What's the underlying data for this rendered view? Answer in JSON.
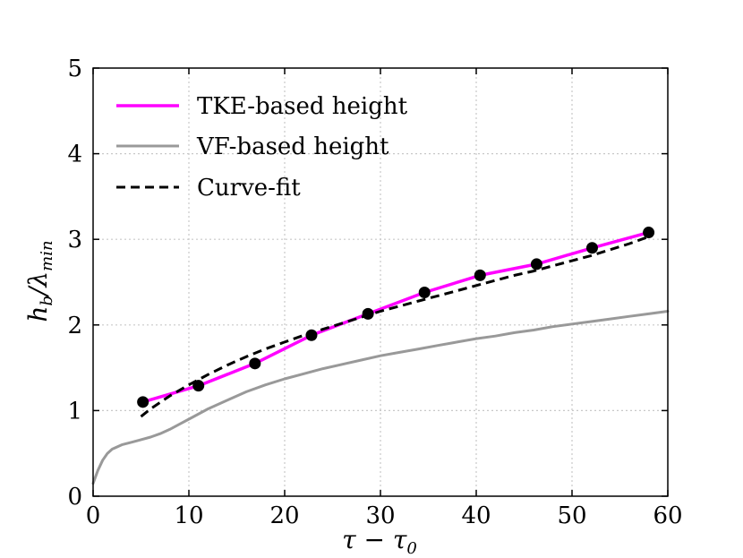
{
  "chart_data": {
    "type": "line",
    "title": "",
    "xlabel": "τ − τ",
    "xlabel_sub": "0",
    "ylabel": "h",
    "ylabel_sub1": "b",
    "ylabel_mid": "/λ",
    "ylabel_sub2": "min",
    "xlim": [
      0,
      60
    ],
    "ylim": [
      0,
      5
    ],
    "xticks": [
      0,
      10,
      20,
      30,
      40,
      50,
      60
    ],
    "yticks": [
      0,
      1,
      2,
      3,
      4,
      5
    ],
    "xtick_labels": [
      "0",
      "10",
      "20",
      "30",
      "40",
      "50",
      "60"
    ],
    "ytick_labels": [
      "0",
      "1",
      "2",
      "3",
      "4",
      "5"
    ],
    "grid": true,
    "legend_position": "top-left",
    "series": [
      {
        "name": "TKE-based height",
        "color": "#ff00ff",
        "style": "solid",
        "markers": true,
        "x": [
          5.2,
          11.0,
          16.9,
          22.8,
          28.7,
          34.6,
          40.4,
          46.3,
          52.1,
          58.0
        ],
        "y": [
          1.1,
          1.29,
          1.55,
          1.88,
          2.13,
          2.38,
          2.58,
          2.71,
          2.9,
          3.08
        ]
      },
      {
        "name": "VF-based height",
        "color": "#999999",
        "style": "solid",
        "markers": false,
        "x": [
          0,
          0.5,
          1,
          1.5,
          2,
          3,
          4,
          5,
          6,
          7,
          8,
          9,
          10,
          12,
          14,
          16,
          18,
          20,
          22,
          24,
          26,
          28,
          30,
          32,
          34,
          36,
          38,
          40,
          42,
          44,
          46,
          48,
          50,
          52,
          54,
          56,
          58,
          60
        ],
        "y": [
          0.15,
          0.3,
          0.42,
          0.5,
          0.55,
          0.6,
          0.63,
          0.66,
          0.69,
          0.73,
          0.78,
          0.84,
          0.9,
          1.02,
          1.12,
          1.22,
          1.3,
          1.37,
          1.43,
          1.49,
          1.54,
          1.59,
          1.64,
          1.68,
          1.72,
          1.76,
          1.8,
          1.84,
          1.87,
          1.91,
          1.94,
          1.98,
          2.01,
          2.04,
          2.07,
          2.1,
          2.13,
          2.16
        ]
      },
      {
        "name": "Curve-fit",
        "color": "#000000",
        "style": "dashed",
        "markers": false,
        "x": [
          5,
          6,
          8,
          10,
          12,
          14,
          16,
          18,
          20,
          22,
          24,
          26,
          28,
          30,
          32,
          34,
          36,
          38,
          40,
          42,
          44,
          46,
          48,
          50,
          52,
          54,
          56,
          58
        ],
        "y": [
          0.93,
          1.02,
          1.17,
          1.3,
          1.42,
          1.53,
          1.63,
          1.72,
          1.8,
          1.88,
          1.95,
          2.02,
          2.09,
          2.16,
          2.22,
          2.28,
          2.34,
          2.4,
          2.46,
          2.52,
          2.58,
          2.63,
          2.69,
          2.75,
          2.81,
          2.88,
          2.95,
          3.03
        ]
      }
    ]
  }
}
